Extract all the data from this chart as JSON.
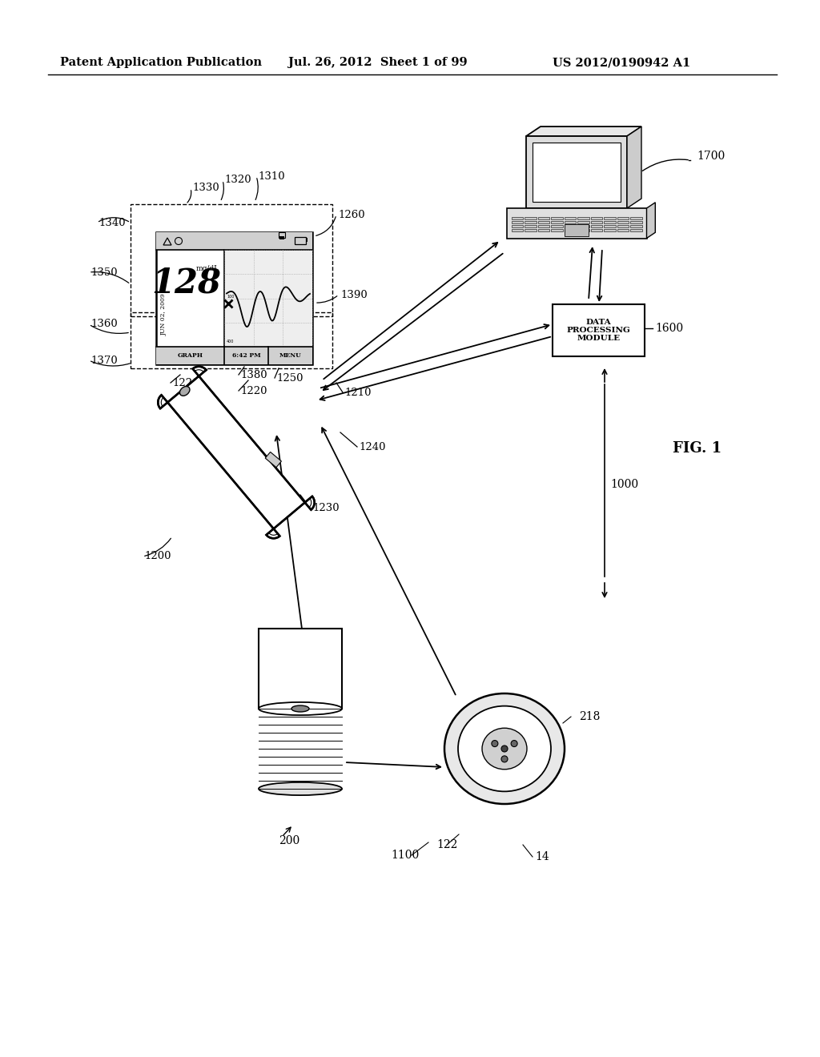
{
  "header_left": "Patent Application Publication",
  "header_mid": "Jul. 26, 2012  Sheet 1 of 99",
  "header_right": "US 2012/0190942 A1",
  "fig_label": "FIG. 1",
  "background_color": "#ffffff",
  "line_color": "#000000",
  "dpi": 100,
  "figsize": [
    10.24,
    13.2
  ]
}
